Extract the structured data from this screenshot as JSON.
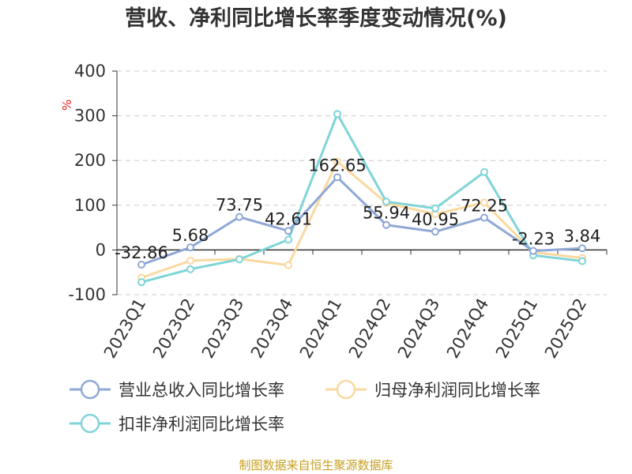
{
  "chart_data": {
    "type": "line",
    "title": "营收、净利同比增长率季度变动情况(%)",
    "ylabel": "%",
    "ylim": [
      -100,
      400
    ],
    "yticks": [
      -100,
      0,
      100,
      200,
      300,
      400
    ],
    "grid": "horizontal-dashed",
    "legend_placement": "bottom",
    "categories": [
      "2023Q1",
      "2023Q2",
      "2023Q3",
      "2023Q4",
      "2024Q1",
      "2024Q2",
      "2024Q3",
      "2024Q4",
      "2025Q1",
      "2025Q2"
    ],
    "series": [
      {
        "name": "营业总收入同比增长率",
        "color": "#8fa8d6",
        "values": [
          -32.86,
          5.68,
          73.75,
          42.61,
          162.65,
          55.94,
          40.95,
          72.25,
          -2.23,
          3.84
        ],
        "data_labels": [
          "-32.86",
          "5.68",
          "73.75",
          "42.61",
          "162.65",
          "55.94",
          "40.95",
          "72.25",
          "-2.23",
          "3.84"
        ]
      },
      {
        "name": "归母净利润同比增长率",
        "color": "#fad9a0",
        "values": [
          -62,
          -24,
          -20,
          -34,
          198,
          105,
          80,
          106,
          -5,
          -18
        ]
      },
      {
        "name": "扣非净利润同比增长率",
        "color": "#80d4d8",
        "values": [
          -72,
          -43,
          -21,
          23,
          304,
          108,
          93,
          174,
          -12,
          -25
        ]
      }
    ]
  },
  "source": "制图数据来自恒生聚源数据库"
}
